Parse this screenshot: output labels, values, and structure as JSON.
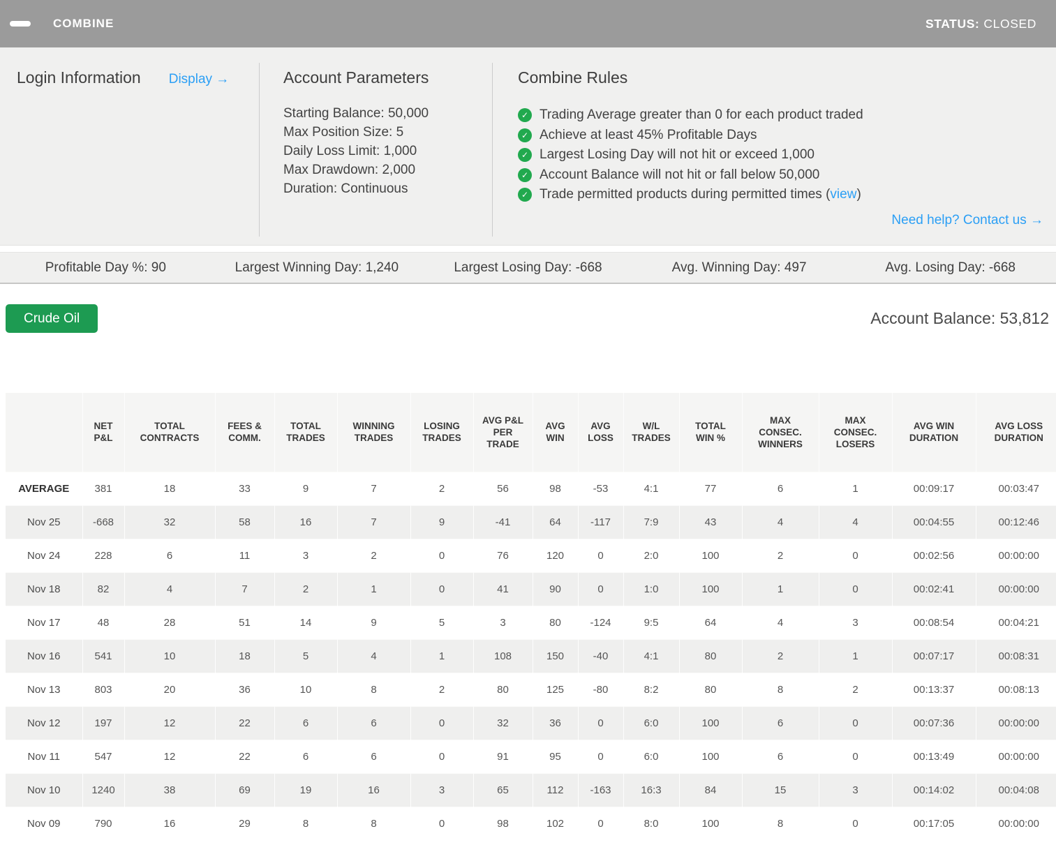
{
  "header": {
    "title": "COMBINE",
    "status_label": "STATUS:",
    "status_value": "CLOSED"
  },
  "login": {
    "title": "Login Information",
    "display_link": "Display →"
  },
  "account_parameters": {
    "title": "Account Parameters",
    "items": [
      "Starting Balance: 50,000",
      "Max Position Size: 5",
      "Daily Loss Limit: 1,000",
      "Max Drawdown: 2,000",
      "Duration: Continuous"
    ]
  },
  "combine_rules": {
    "title": "Combine Rules",
    "rules": [
      {
        "text": "Trading Average greater than 0 for each product traded"
      },
      {
        "text": "Achieve at least 45% Profitable Days"
      },
      {
        "text": "Largest Losing Day will not hit or exceed 1,000"
      },
      {
        "text": "Account Balance will not hit or fall below 50,000"
      },
      {
        "text": "Trade permitted products during permitted times (",
        "link": "view",
        "suffix": ")"
      }
    ],
    "help_link": "Need help? Contact us →"
  },
  "stats_bar": [
    "Profitable Day %: 90",
    "Largest Winning Day: 1,240",
    "Largest Losing Day: -668",
    "Avg. Winning Day: 497",
    "Avg. Losing Day: -668"
  ],
  "account": {
    "product_button": "Crude Oil",
    "balance": "Account Balance: 53,812"
  },
  "table": {
    "columns": [
      "",
      "NET P&L",
      "TOTAL CONTRACTS",
      "FEES & COMM.",
      "TOTAL TRADES",
      "WINNING TRADES",
      "LOSING TRADES",
      "AVG P&L PER TRADE",
      "AVG WIN",
      "AVG LOSS",
      "W/L TRADES",
      "TOTAL WIN %",
      "MAX CONSEC. WINNERS",
      "MAX CONSEC. LOSERS",
      "AVG WIN DURATION",
      "AVG LOSS DURATION"
    ],
    "rows": [
      {
        "label": "AVERAGE",
        "bold": true,
        "values": [
          "381",
          "18",
          "33",
          "9",
          "7",
          "2",
          "56",
          "98",
          "-53",
          "4:1",
          "77",
          "6",
          "1",
          "00:09:17",
          "00:03:47"
        ]
      },
      {
        "label": "Nov 25",
        "bold": false,
        "values": [
          "-668",
          "32",
          "58",
          "16",
          "7",
          "9",
          "-41",
          "64",
          "-117",
          "7:9",
          "43",
          "4",
          "4",
          "00:04:55",
          "00:12:46"
        ]
      },
      {
        "label": "Nov 24",
        "bold": false,
        "values": [
          "228",
          "6",
          "11",
          "3",
          "2",
          "0",
          "76",
          "120",
          "0",
          "2:0",
          "100",
          "2",
          "0",
          "00:02:56",
          "00:00:00"
        ]
      },
      {
        "label": "Nov 18",
        "bold": false,
        "values": [
          "82",
          "4",
          "7",
          "2",
          "1",
          "0",
          "41",
          "90",
          "0",
          "1:0",
          "100",
          "1",
          "0",
          "00:02:41",
          "00:00:00"
        ]
      },
      {
        "label": "Nov 17",
        "bold": false,
        "values": [
          "48",
          "28",
          "51",
          "14",
          "9",
          "5",
          "3",
          "80",
          "-124",
          "9:5",
          "64",
          "4",
          "3",
          "00:08:54",
          "00:04:21"
        ]
      },
      {
        "label": "Nov 16",
        "bold": false,
        "values": [
          "541",
          "10",
          "18",
          "5",
          "4",
          "1",
          "108",
          "150",
          "-40",
          "4:1",
          "80",
          "2",
          "1",
          "00:07:17",
          "00:08:31"
        ]
      },
      {
        "label": "Nov 13",
        "bold": false,
        "values": [
          "803",
          "20",
          "36",
          "10",
          "8",
          "2",
          "80",
          "125",
          "-80",
          "8:2",
          "80",
          "8",
          "2",
          "00:13:37",
          "00:08:13"
        ]
      },
      {
        "label": "Nov 12",
        "bold": false,
        "values": [
          "197",
          "12",
          "22",
          "6",
          "6",
          "0",
          "32",
          "36",
          "0",
          "6:0",
          "100",
          "6",
          "0",
          "00:07:36",
          "00:00:00"
        ]
      },
      {
        "label": "Nov 11",
        "bold": false,
        "values": [
          "547",
          "12",
          "22",
          "6",
          "6",
          "0",
          "91",
          "95",
          "0",
          "6:0",
          "100",
          "6",
          "0",
          "00:13:49",
          "00:00:00"
        ]
      },
      {
        "label": "Nov 10",
        "bold": false,
        "values": [
          "1240",
          "38",
          "69",
          "19",
          "16",
          "3",
          "65",
          "112",
          "-163",
          "16:3",
          "84",
          "15",
          "3",
          "00:14:02",
          "00:04:08"
        ]
      },
      {
        "label": "Nov 09",
        "bold": false,
        "values": [
          "790",
          "16",
          "29",
          "8",
          "8",
          "0",
          "98",
          "102",
          "0",
          "8:0",
          "100",
          "8",
          "0",
          "00:17:05",
          "00:00:00"
        ]
      }
    ]
  },
  "icons": {
    "minimize": "minus-icon",
    "rule_check": "check-circle-icon"
  },
  "colors": {
    "header_gray": "#9b9b9b",
    "panel_gray": "#f0f0ef",
    "accent_blue": "#2b9ff5",
    "button_green": "#1d9b52",
    "check_green": "#21a94e"
  }
}
